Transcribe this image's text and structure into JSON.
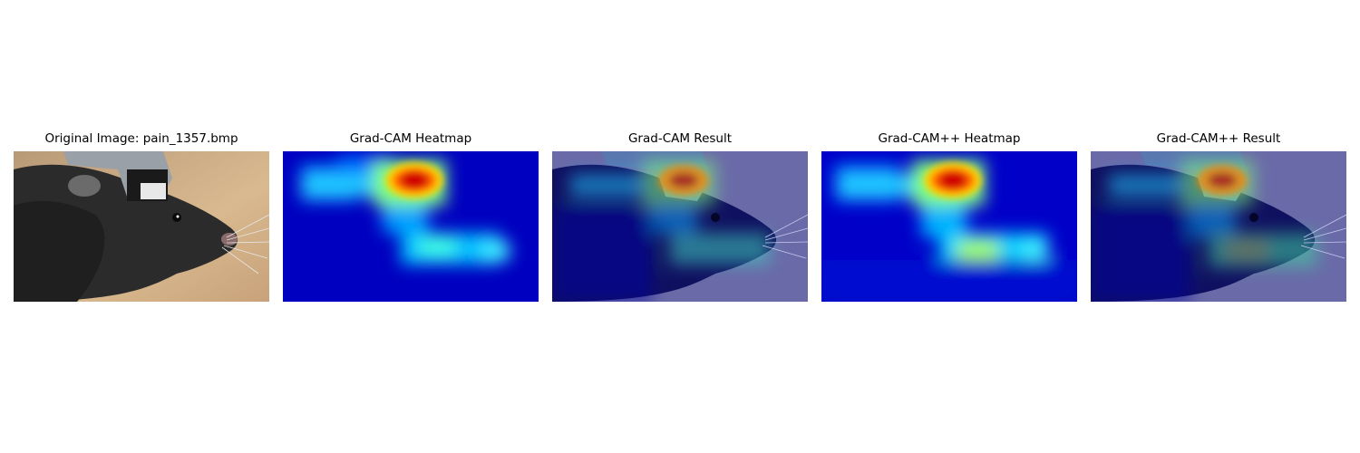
{
  "panels": [
    {
      "title": "Original Image: pain_1357.bmp",
      "kind": "original"
    },
    {
      "title": "Grad-CAM Heatmap",
      "kind": "heatmap"
    },
    {
      "title": "Grad-CAM Result",
      "kind": "overlay"
    },
    {
      "title": "Grad-CAM++ Heatmap",
      "kind": "heatmap"
    },
    {
      "title": "Grad-CAM++ Result",
      "kind": "overlay"
    }
  ],
  "colors": {
    "background": "#ffffff",
    "heatmap_low": "#0000b4",
    "heatmap_mid": "#00e0ff",
    "heatmap_high": "#d00000",
    "photo_bg": "#c8a880",
    "mouse_fur": "#2a2a2a"
  }
}
